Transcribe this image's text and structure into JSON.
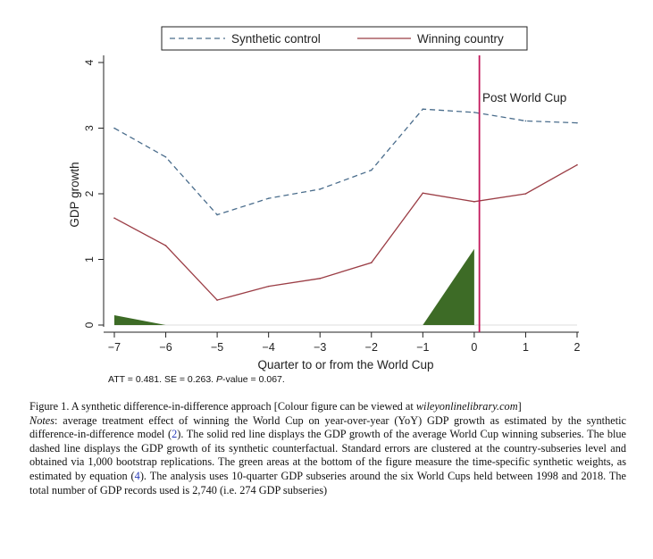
{
  "chart_data": {
    "type": "line",
    "title": "",
    "xlabel": "Quarter to or from the World Cup",
    "ylabel": "GDP growth",
    "x": [
      -7,
      -6,
      -5,
      -4,
      -3,
      -2,
      -1,
      0,
      1,
      2
    ],
    "xlim": [
      -7,
      2
    ],
    "ylim": [
      0,
      4
    ],
    "xticks": [
      "−7",
      "−6",
      "−5",
      "−4",
      "−3",
      "−2",
      "−1",
      "0",
      "1",
      "2"
    ],
    "yticks": [
      "0",
      "1",
      "2",
      "3",
      "4"
    ],
    "series": [
      {
        "name": "Synthetic control",
        "style": "dashed",
        "color": "#4a6d8c",
        "values": [
          3.0,
          2.56,
          1.68,
          1.93,
          2.07,
          2.36,
          3.29,
          3.24,
          3.11,
          3.08
        ]
      },
      {
        "name": "Winning country",
        "style": "solid",
        "color": "#9b3d45",
        "values": [
          1.63,
          1.21,
          0.38,
          0.59,
          0.71,
          0.95,
          2.01,
          1.88,
          2.0,
          2.44
        ]
      }
    ],
    "weights": {
      "name": "Synthetic weights",
      "color": "#3d6b26",
      "x": [
        -7,
        -6,
        -1,
        0
      ],
      "values": [
        0.15,
        0.0,
        0.0,
        1.16
      ]
    },
    "event_line": {
      "x": 0.1,
      "label": "Post World Cup",
      "color": "#c2185b"
    },
    "legend_position": "top"
  },
  "stats": {
    "att_label": "ATT = 0.481. SE = 0.263. ",
    "p_label": "P",
    "p_value": "-value = 0.067."
  },
  "caption": {
    "title": "Figure 1. A synthetic difference-in-difference approach [Colour figure can be viewed at ",
    "link": "wileyonlinelibrary.com",
    "title_end": "]",
    "notes_label": "Notes",
    "notes_1": ": average treatment effect of winning the World Cup on year-over-year (YoY) GDP growth as estimated by the synthetic difference-in-difference model (",
    "ref_2": "2",
    "notes_2": "). The solid red line displays the GDP growth of the average World Cup winning subseries. The blue dashed line displays the GDP growth of its synthetic counterfactual. Standard errors are clustered at the country-subseries level and obtained via 1,000 bootstrap replications. The green areas at the bottom of the figure measure the time-specific synthetic weights, as estimated by equation (",
    "ref_4": "4",
    "notes_3": "). The analysis uses 10-quarter GDP subseries around the six World Cups held between 1998 and 2018. The total number of GDP records used is 2,740 (i.e. 274 GDP subseries)"
  }
}
